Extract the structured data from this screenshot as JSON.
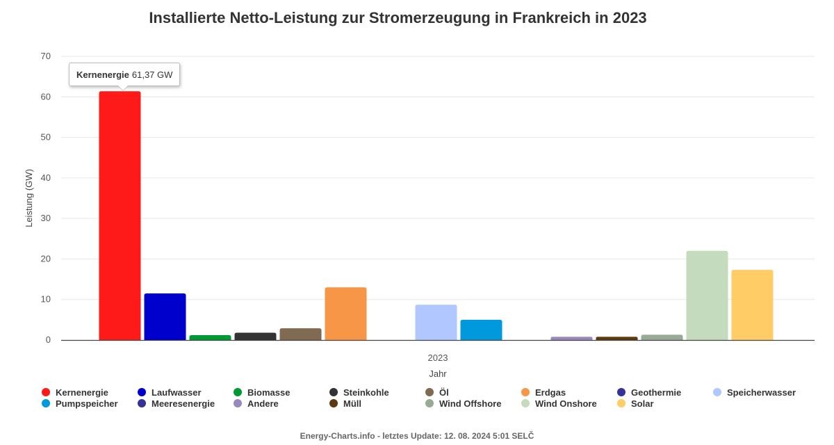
{
  "chart_data": {
    "type": "bar",
    "title": "Installierte Netto-Leistung zur Stromerzeugung in Frankreich in 2023",
    "xlabel": "Jahr",
    "ylabel": "Leistung (GW)",
    "categories": [
      "2023"
    ],
    "ylim": [
      0,
      70
    ],
    "yticks": [
      0,
      10,
      20,
      30,
      40,
      50,
      60,
      70
    ],
    "grid": true,
    "legend_position": "bottom",
    "series": [
      {
        "name": "Kernenergie",
        "color": "#ff1a1a",
        "values": [
          61.37
        ]
      },
      {
        "name": "Laufwasser",
        "color": "#0000cc",
        "values": [
          11.5
        ]
      },
      {
        "name": "Biomasse",
        "color": "#009933",
        "values": [
          1.2
        ]
      },
      {
        "name": "Steinkohle",
        "color": "#333333",
        "values": [
          1.8
        ]
      },
      {
        "name": "Öl",
        "color": "#806a52",
        "values": [
          2.9
        ]
      },
      {
        "name": "Erdgas",
        "color": "#f79646",
        "values": [
          13.0
        ]
      },
      {
        "name": "Geothermie",
        "color": "#333399",
        "values": [
          0.0
        ]
      },
      {
        "name": "Speicherwasser",
        "color": "#b0c8ff",
        "values": [
          8.7
        ]
      },
      {
        "name": "Pumpspeicher",
        "color": "#0099dd",
        "values": [
          5.0
        ]
      },
      {
        "name": "Meeresenergie",
        "color": "#333399",
        "values": [
          0.0
        ]
      },
      {
        "name": "Andere",
        "color": "#9988bb",
        "values": [
          0.8
        ]
      },
      {
        "name": "Müll",
        "color": "#5c3a10",
        "values": [
          0.8
        ]
      },
      {
        "name": "Wind Offshore",
        "color": "#98ab94",
        "values": [
          1.3
        ]
      },
      {
        "name": "Wind Onshore",
        "color": "#c5dbbd",
        "values": [
          22.0
        ]
      },
      {
        "name": "Solar",
        "color": "#ffcc66",
        "values": [
          17.3
        ]
      }
    ]
  },
  "tooltip": {
    "series": "Kernenergie",
    "value": "61,37 GW"
  },
  "footer": "Energy-Charts.info - letztes Update: 12. 08. 2024 5:01 SELČ"
}
